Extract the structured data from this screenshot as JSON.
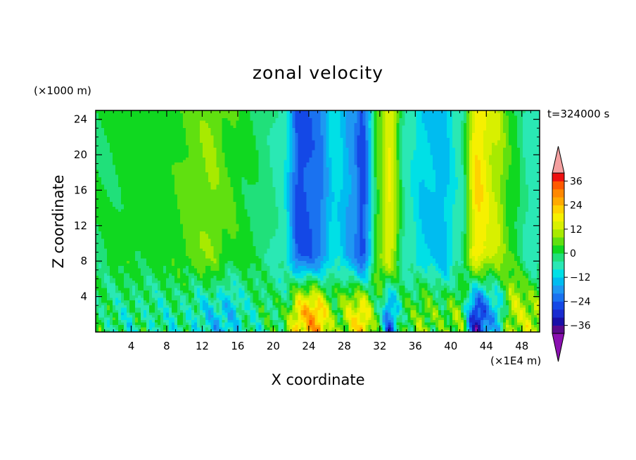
{
  "chart_data": {
    "type": "heatmap",
    "title": "zonal velocity",
    "xlabel": "X coordinate",
    "ylabel": "Z coordinate",
    "x_unit": "(×1E4 m)",
    "y_unit": "(×1000 m)",
    "time_label": "t=324000 s",
    "xlim": [
      0,
      50
    ],
    "ylim": [
      0,
      25
    ],
    "x_ticks": [
      4,
      8,
      12,
      16,
      20,
      24,
      28,
      32,
      36,
      40,
      44,
      48
    ],
    "y_ticks": [
      4,
      8,
      12,
      16,
      20,
      24
    ],
    "colorbar": {
      "levels": [
        -40,
        -36,
        -32,
        -28,
        -24,
        -20,
        -16,
        -12,
        -8,
        -4,
        0,
        4,
        8,
        12,
        16,
        20,
        24,
        28,
        32,
        36,
        40
      ],
      "colors": [
        "#5a0a8c",
        "#1a10a8",
        "#1a2cd0",
        "#1448e6",
        "#1a72f0",
        "#1e98f2",
        "#00bcf0",
        "#00e0e6",
        "#2ae8b4",
        "#20e07a",
        "#10d820",
        "#60e010",
        "#a8ea00",
        "#d8f000",
        "#f6f000",
        "#ffd200",
        "#ffaa00",
        "#ff8800",
        "#ff5a00",
        "#ee1010"
      ],
      "under_color": "#8a10b0",
      "over_color": "#f4a0a0",
      "tick_labels": [
        "36",
        "24",
        "12",
        "0",
        "−12",
        "−24",
        "−36"
      ]
    },
    "columns": [
      {
        "x": 1,
        "top": 0,
        "bottom": -2
      },
      {
        "x": 4,
        "top": 2,
        "bottom": -4
      },
      {
        "x": 8,
        "top": 2,
        "bottom": -4
      },
      {
        "x": 11,
        "top": 6,
        "bottom": -6
      },
      {
        "x": 13,
        "top": 8,
        "bottom": -10
      },
      {
        "x": 15,
        "top": 4,
        "bottom": -14
      },
      {
        "x": 17,
        "top": 1,
        "bottom": -4
      },
      {
        "x": 19,
        "top": -2,
        "bottom": -2
      },
      {
        "x": 21,
        "top": -6,
        "bottom": 0
      },
      {
        "x": 23,
        "top": -26,
        "bottom": 22
      },
      {
        "x": 25,
        "top": -22,
        "bottom": 24
      },
      {
        "x": 27,
        "top": -10,
        "bottom": 6
      },
      {
        "x": 29,
        "top": -18,
        "bottom": 14
      },
      {
        "x": 30,
        "top": -26,
        "bottom": 20
      },
      {
        "x": 32,
        "top": 6,
        "bottom": 0
      },
      {
        "x": 33,
        "top": 16,
        "bottom": -22
      },
      {
        "x": 35,
        "top": -6,
        "bottom": 2
      },
      {
        "x": 37,
        "top": -12,
        "bottom": 8
      },
      {
        "x": 39,
        "top": -14,
        "bottom": 2
      },
      {
        "x": 41,
        "top": -6,
        "bottom": 8
      },
      {
        "x": 43,
        "top": 20,
        "bottom": -32
      },
      {
        "x": 45,
        "top": 12,
        "bottom": -14
      },
      {
        "x": 47,
        "top": 2,
        "bottom": 12
      },
      {
        "x": 49,
        "top": -6,
        "bottom": 10
      }
    ]
  }
}
